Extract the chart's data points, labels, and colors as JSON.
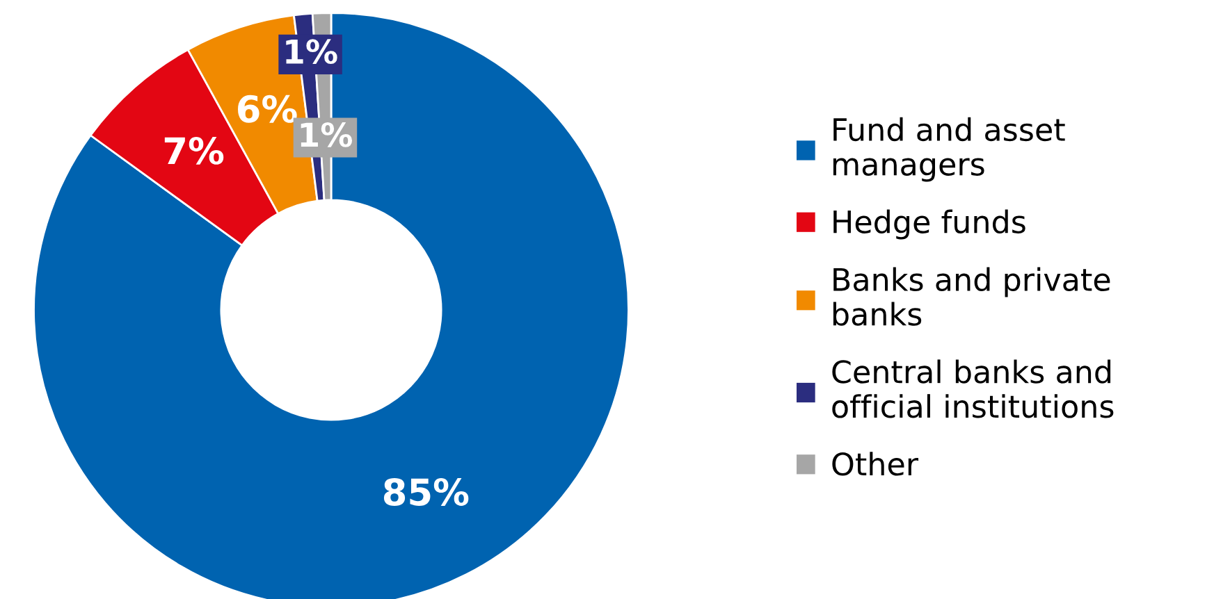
{
  "chart_data": {
    "type": "donut",
    "categories": [
      "Fund and asset managers",
      "Hedge funds",
      "Banks and private banks",
      "Central banks and official institutions",
      "Other"
    ],
    "values": [
      85,
      7,
      6,
      1,
      1
    ],
    "colors": [
      "#0063b0",
      "#e30613",
      "#f18a00",
      "#2b2d7f",
      "#a6a6a6"
    ],
    "value_labels": [
      "85%",
      "7%",
      "6%",
      "1%",
      "1%"
    ],
    "legend": "right"
  }
}
